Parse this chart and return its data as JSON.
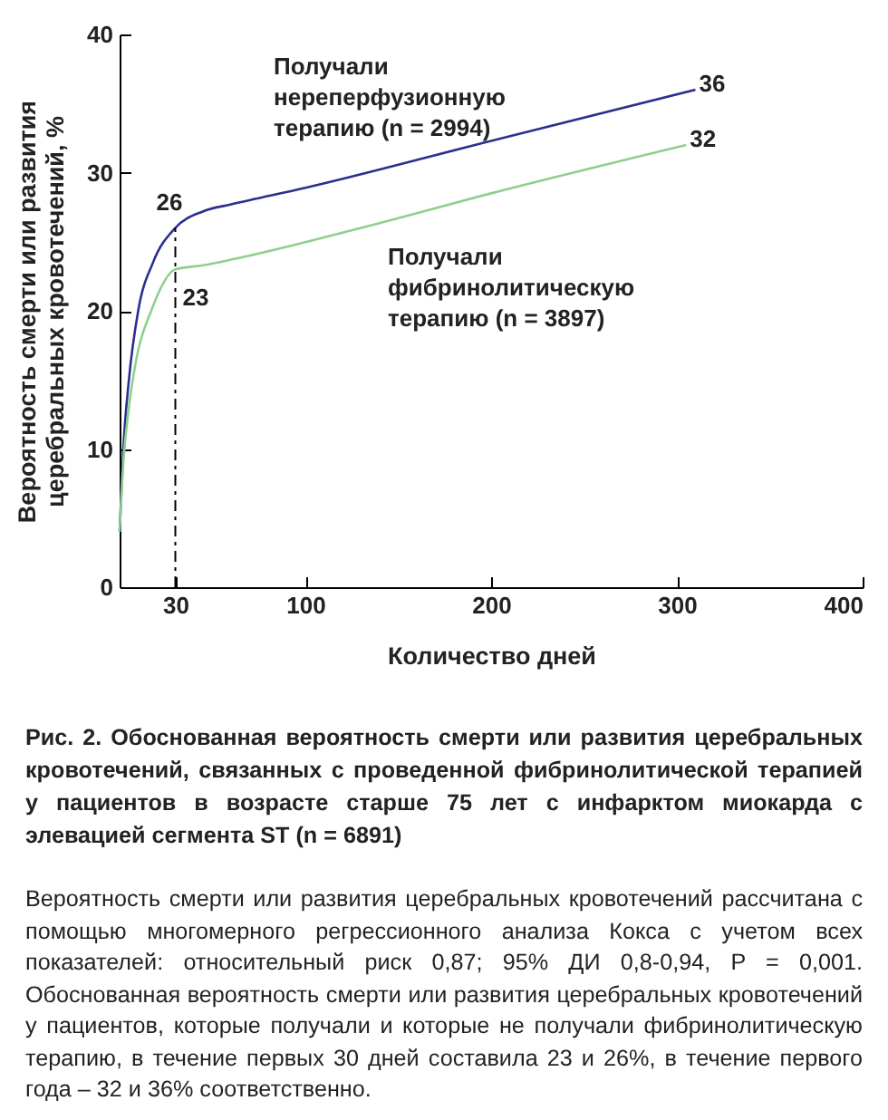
{
  "chart_data": {
    "type": "line",
    "title": "Рис. 2. Обоснованная вероятность смерти или развития церебральных кровотечений, связанных с проведенной фибринолитической терапией у пациентов в возрасте старше 75 лет с инфарктом миокарда с элевацией сегмента ST (n = 6891)",
    "xlabel": "Количество дней",
    "ylabel": "Вероятность смерти или развития церебральных кровотечений, %",
    "annotations": [
      "Вероятность смерти или развития церебральных кровотечений рассчитана с помощью многомерного регрессионного анализа Кокса с учетом всех показателей: относительный риск 0,87; 95% ДИ 0,8-0,94, P = 0,001. Обоснованная вероятность смерти или развития церебральных кровотечений у пациентов, которые получали и которые не получали фибринолитическую терапию, в течение первых 30 дней составила 23 и 26%, в течение первого года – 32 и 36% соответственно."
    ],
    "series": [
      {
        "name": "Получали нереперфузионную терапию (n = 2994)",
        "color": "#2b2f8f",
        "x": [
          0,
          2,
          5,
          10,
          18,
          30,
          45,
          60,
          100,
          200,
          310
        ],
        "values": [
          4,
          10,
          15,
          20,
          23.5,
          26,
          27.2,
          27.7,
          28.9,
          32.3,
          36
        ],
        "value_labels": [
          null,
          null,
          null,
          null,
          null,
          "26",
          null,
          null,
          null,
          null,
          "36"
        ]
      },
      {
        "name": "Получали фибринолитическую терапию (n = 3897)",
        "color": "#8fcf8f",
        "x": [
          0,
          2,
          5,
          9,
          17,
          30,
          45,
          60,
          130,
          200,
          305
        ],
        "values": [
          4,
          9,
          13,
          16.5,
          20,
          23,
          23.3,
          23.7,
          26,
          28.5,
          32
        ],
        "value_labels": [
          null,
          null,
          null,
          null,
          null,
          "23",
          null,
          null,
          null,
          null,
          "32"
        ]
      }
    ],
    "xlim": [
      0,
      400
    ],
    "xticks": [
      30,
      100,
      200,
      300,
      400
    ],
    "ylim": [
      0,
      40
    ],
    "yticks": [
      0,
      10,
      20,
      30,
      40
    ],
    "ref_lines": [
      {
        "axis": "x",
        "value": 30,
        "line_style": "dashed",
        "color": "#000000"
      }
    ],
    "grid": false
  }
}
